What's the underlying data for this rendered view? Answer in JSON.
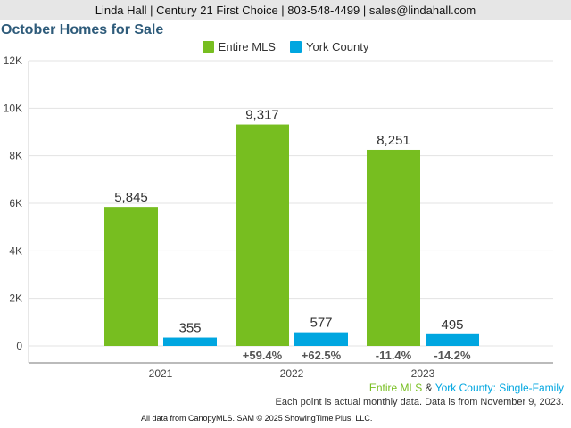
{
  "header": {
    "contact_line": "Linda Hall | Century 21 First Choice | 803-548-4499 | sales@lindahall.com"
  },
  "colors": {
    "entire_mls": "#77be20",
    "york_county": "#00a6e0"
  },
  "chart_data": {
    "type": "bar",
    "title": "October Homes for Sale",
    "categories": [
      "2021",
      "2022",
      "2023"
    ],
    "ylim": [
      0,
      12000
    ],
    "yticks": [
      0,
      2000,
      4000,
      6000,
      8000,
      10000,
      12000
    ],
    "ytick_labels": [
      "0",
      "2K",
      "4K",
      "6K",
      "8K",
      "10K",
      "12K"
    ],
    "grid": true,
    "legend_position": "top-center",
    "series": [
      {
        "name": "Entire MLS",
        "values": [
          5845,
          9317,
          8251
        ],
        "labels": [
          "5,845",
          "9,317",
          "8,251"
        ],
        "changes": [
          "",
          "+59.4%",
          "-11.4%"
        ]
      },
      {
        "name": "York County",
        "values": [
          355,
          577,
          495
        ],
        "labels": [
          "355",
          "577",
          "495"
        ],
        "changes": [
          "",
          "+62.5%",
          "-14.2%"
        ]
      }
    ]
  },
  "footer": {
    "series_note": {
      "entire_mls": "Entire MLS",
      "amp": " & ",
      "york_county": "York County",
      "rest": ": Single-Family"
    },
    "data_note": "Each point is actual monthly data. Data is from November 9, 2023.",
    "copyright": "All data from CanopyMLS. SAM © 2025 ShowingTime Plus, LLC."
  }
}
